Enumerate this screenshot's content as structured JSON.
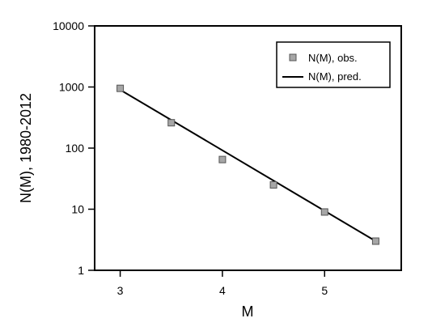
{
  "chart_data": {
    "type": "scatter",
    "xlabel": "M",
    "ylabel": "N(M), 1980-2012",
    "xlim": [
      2.75,
      5.75
    ],
    "ylim": [
      1,
      10000
    ],
    "yscale": "log",
    "x_ticks": [
      3,
      4,
      5
    ],
    "x_tick_labels": [
      "3",
      "4",
      "5"
    ],
    "y_ticks": [
      1,
      10,
      100,
      1000,
      10000
    ],
    "y_tick_labels": [
      "1",
      "10",
      "100",
      "1000",
      "10000"
    ],
    "grid": false,
    "legend_position": "top-right",
    "series": [
      {
        "name": "N(M), obs.",
        "kind": "scatter",
        "marker": "square",
        "color": "#a6a6a6",
        "x": [
          3.0,
          3.5,
          4.0,
          4.5,
          5.0,
          5.5
        ],
        "y": [
          950,
          260,
          65,
          25,
          9,
          3
        ]
      },
      {
        "name": "N(M), pred.",
        "kind": "line",
        "color": "#000000",
        "x": [
          3.0,
          5.5
        ],
        "y": [
          900,
          3
        ]
      }
    ]
  }
}
